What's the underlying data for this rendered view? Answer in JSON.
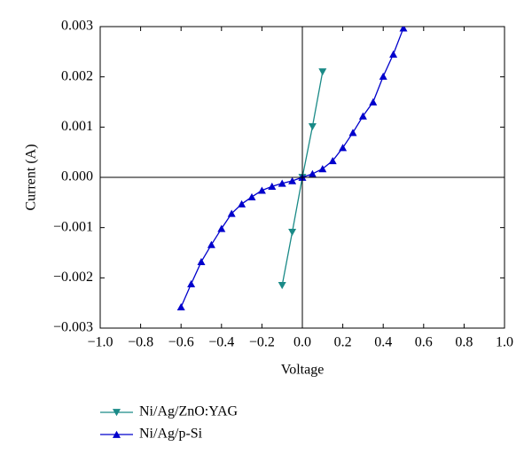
{
  "chart_data": {
    "type": "line",
    "x_label": "Voltage",
    "y_label": "Current (A)",
    "xlim": [
      -1.0,
      1.0
    ],
    "ylim": [
      -0.003,
      0.003
    ],
    "xticks": [
      {
        "value": -1.0,
        "label": "−1.0"
      },
      {
        "value": -0.8,
        "label": "−0.8"
      },
      {
        "value": -0.6,
        "label": "−0.6"
      },
      {
        "value": -0.4,
        "label": "−0.4"
      },
      {
        "value": -0.2,
        "label": "−0.2"
      },
      {
        "value": 0.0,
        "label": "0.0"
      },
      {
        "value": 0.2,
        "label": "0.2"
      },
      {
        "value": 0.4,
        "label": "0.4"
      },
      {
        "value": 0.6,
        "label": "0.6"
      },
      {
        "value": 0.8,
        "label": "0.8"
      },
      {
        "value": 1.0,
        "label": "1.0"
      }
    ],
    "yticks": [
      {
        "value": -0.003,
        "label": "−0.003"
      },
      {
        "value": -0.002,
        "label": "−0.002"
      },
      {
        "value": -0.001,
        "label": "−0.001"
      },
      {
        "value": 0.0,
        "label": "0.000"
      },
      {
        "value": 0.001,
        "label": "0.001"
      },
      {
        "value": 0.002,
        "label": "0.002"
      },
      {
        "value": 0.003,
        "label": "0.003"
      }
    ],
    "legend_position": "bottom-left",
    "series": [
      {
        "name": "Ni/Ag/ZnO:YAG",
        "color": "#1a8a87",
        "marker": "triangle-down",
        "x": [
          -0.1,
          -0.05,
          0.0,
          0.05,
          0.1
        ],
        "values": [
          -0.00215,
          -0.00109,
          0.0,
          0.00101,
          0.0021
        ]
      },
      {
        "name": "Ni/Ag/p-Si",
        "color": "#0000cc",
        "marker": "triangle-up",
        "x": [
          -0.6,
          -0.55,
          -0.5,
          -0.45,
          -0.4,
          -0.35,
          -0.3,
          -0.25,
          -0.2,
          -0.15,
          -0.1,
          -0.05,
          0.0,
          0.05,
          0.1,
          0.15,
          0.2,
          0.25,
          0.3,
          0.35,
          0.4,
          0.45,
          0.5
        ],
        "values": [
          -0.00258,
          -0.00212,
          -0.00168,
          -0.00134,
          -0.00102,
          -0.00072,
          -0.00053,
          -0.00039,
          -0.00026,
          -0.00018,
          -0.00012,
          -7e-05,
          0.0,
          7e-05,
          0.00017,
          0.00033,
          0.00059,
          0.00089,
          0.00122,
          0.0015,
          0.00201,
          0.00245,
          0.00297
        ]
      }
    ]
  }
}
